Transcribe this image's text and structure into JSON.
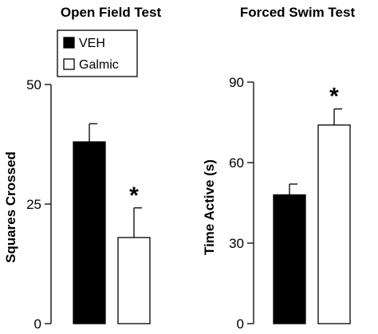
{
  "legend": {
    "items": [
      {
        "label": "VEH",
        "color": "#000000"
      },
      {
        "label": "Galmic",
        "color": "#ffffff"
      }
    ]
  },
  "chart_data": [
    {
      "type": "bar",
      "title": "Open Field Test",
      "ylabel": "Squares Crossed",
      "ylim": [
        0,
        50
      ],
      "yticks": [
        0,
        25,
        50
      ],
      "categories": [
        "VEH",
        "Galmic"
      ],
      "series": [
        {
          "name": "VEH",
          "values": [
            38,
            null
          ],
          "error": [
            3.8,
            null
          ],
          "color": "#000000"
        },
        {
          "name": "Galmic",
          "values": [
            null,
            18
          ],
          "error": [
            null,
            6.2
          ],
          "color": "#ffffff"
        }
      ],
      "annotations": [
        {
          "category": "Galmic",
          "text": "*"
        }
      ],
      "grid": false
    },
    {
      "type": "bar",
      "title": "Forced Swim Test",
      "ylabel": "Time Active (s)",
      "ylim": [
        0,
        90
      ],
      "yticks": [
        0,
        30,
        60,
        90
      ],
      "categories": [
        "VEH",
        "Galmic"
      ],
      "series": [
        {
          "name": "VEH",
          "values": [
            48,
            null
          ],
          "error": [
            4,
            null
          ],
          "color": "#000000"
        },
        {
          "name": "Galmic",
          "values": [
            null,
            74
          ],
          "error": [
            null,
            6
          ],
          "color": "#ffffff"
        }
      ],
      "annotations": [
        {
          "category": "Galmic",
          "text": "*"
        }
      ],
      "grid": false
    }
  ]
}
